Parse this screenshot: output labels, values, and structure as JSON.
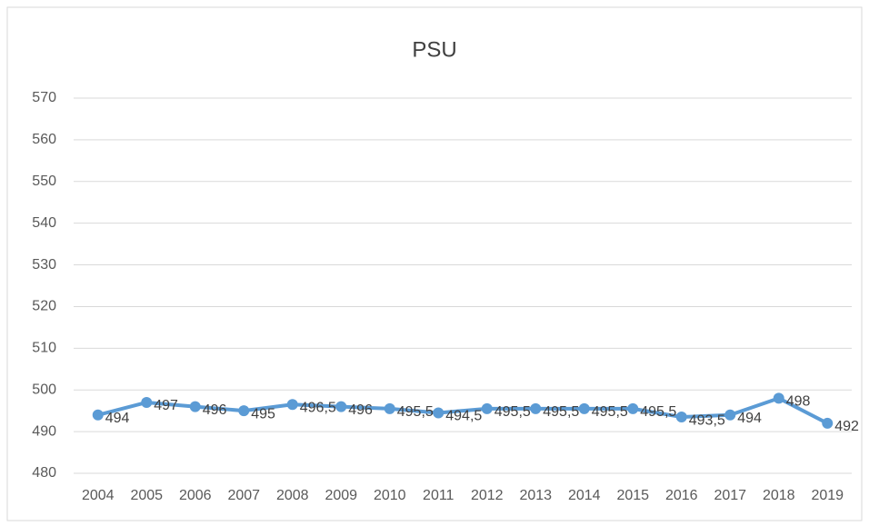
{
  "chart_data": {
    "type": "line",
    "title": "PSU",
    "categories": [
      "2004",
      "2005",
      "2006",
      "2007",
      "2008",
      "2009",
      "2010",
      "2011",
      "2012",
      "2013",
      "2014",
      "2015",
      "2016",
      "2017",
      "2018",
      "2019"
    ],
    "series": [
      {
        "name": "PSU",
        "color": "#5b9bd5",
        "values": [
          494,
          497,
          496,
          495,
          496.5,
          496,
          495.5,
          494.5,
          495.5,
          495.5,
          495.5,
          495.5,
          493.5,
          494,
          498,
          492
        ],
        "value_labels": [
          "494",
          "497",
          "496",
          "495",
          "496,5",
          "496",
          "495,5",
          "494,5",
          "495,5",
          "495,5",
          "495,5",
          "495,5",
          "493,5",
          "494",
          "498",
          "492"
        ]
      }
    ],
    "ylim": [
      480,
      570
    ],
    "yticks": [
      480,
      490,
      500,
      510,
      520,
      530,
      540,
      550,
      560,
      570
    ],
    "grid": true
  }
}
